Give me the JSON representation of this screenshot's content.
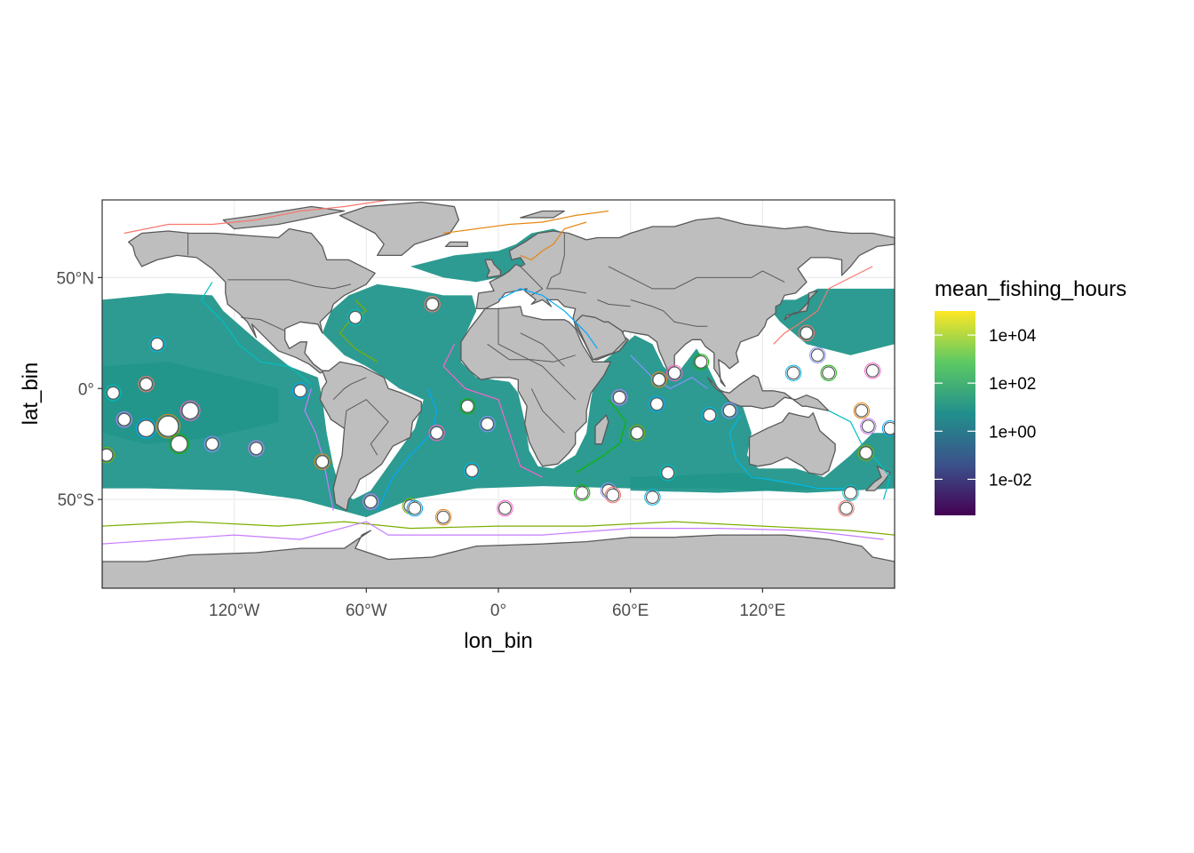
{
  "chart_data": {
    "type": "heatmap",
    "title": "",
    "xlabel": "lon_bin",
    "ylabel": "lat_bin",
    "xlim": [
      -180,
      180
    ],
    "ylim": [
      -90,
      85
    ],
    "x_ticks": [
      {
        "value": -120,
        "label": "120°W"
      },
      {
        "value": -60,
        "label": "60°W"
      },
      {
        "value": 0,
        "label": "0°"
      },
      {
        "value": 60,
        "label": "60°E"
      },
      {
        "value": 120,
        "label": "120°E"
      }
    ],
    "y_ticks": [
      {
        "value": 50,
        "label": "50°N"
      },
      {
        "value": 0,
        "label": "0°"
      },
      {
        "value": -50,
        "label": "50°S"
      }
    ],
    "grid": true,
    "land_color": "#bebebe",
    "border_color": "#595959",
    "fill_variable": "mean_fishing_hours",
    "legend": {
      "title": "mean_fishing_hours",
      "placement": "right",
      "scale": "log10",
      "palette": "viridis",
      "colors": [
        "#440154",
        "#3b528b",
        "#21908c",
        "#5dc963",
        "#fde725"
      ],
      "range_log10": [
        -3.5,
        5.0
      ],
      "ticks": [
        {
          "log10": 4,
          "label": "1e+04"
        },
        {
          "log10": 2,
          "label": "1e+02"
        },
        {
          "log10": 0,
          "label": "1e+00"
        },
        {
          "log10": -2,
          "label": "1e-02"
        }
      ]
    }
  }
}
